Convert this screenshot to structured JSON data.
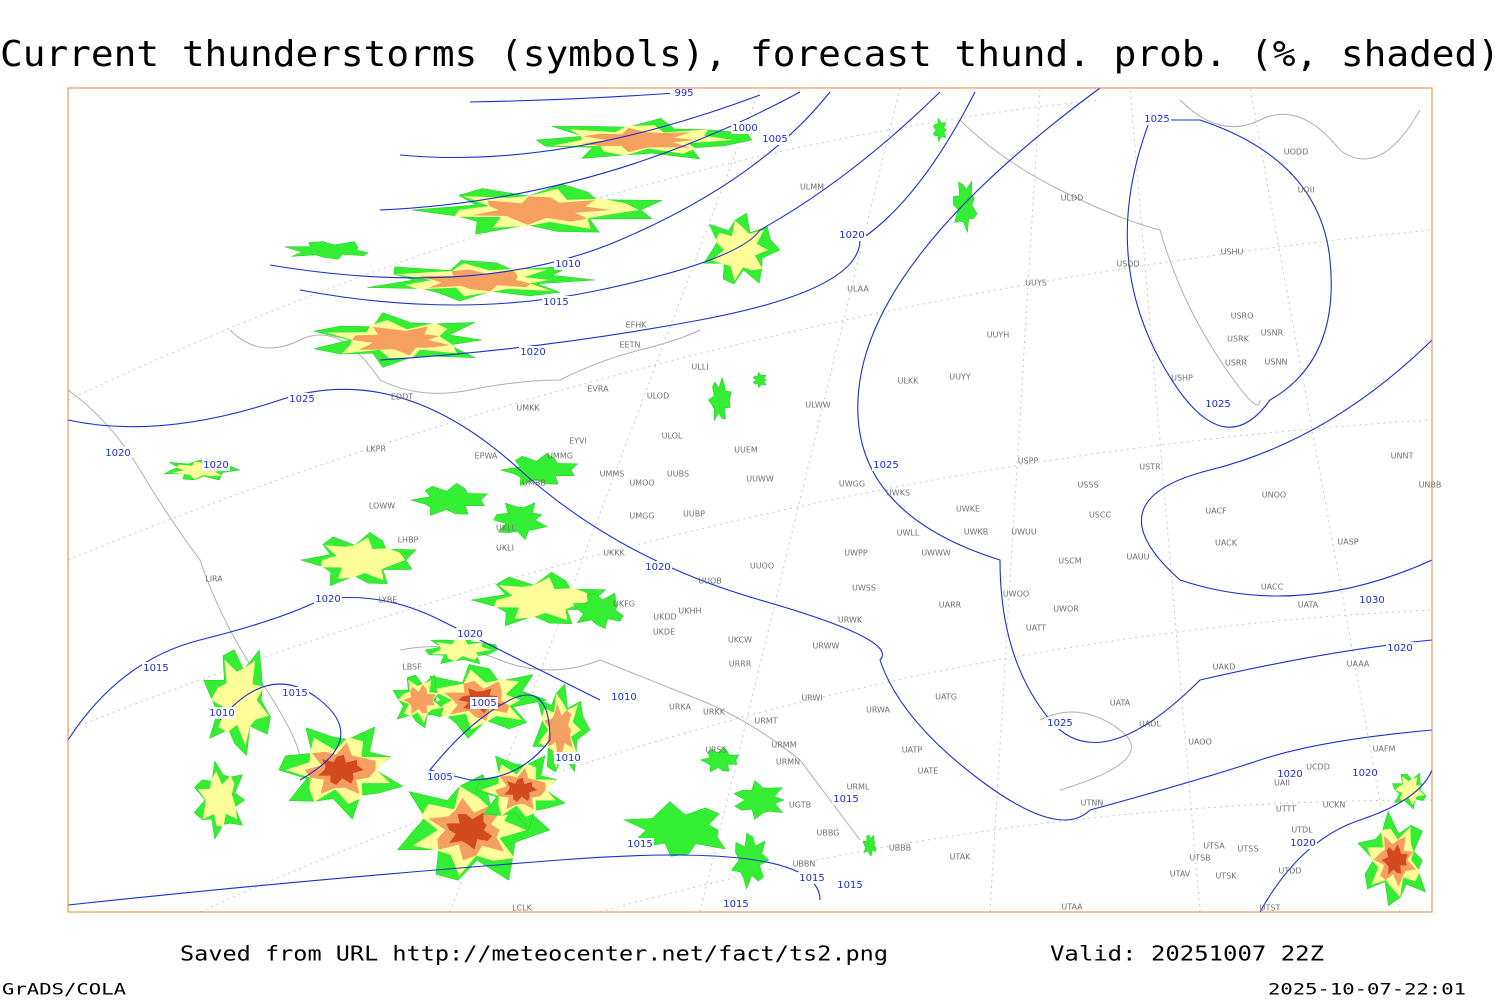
{
  "header": {
    "title": "Current thunderstorms (symbols), forecast thund. prob. (%, shaded)"
  },
  "footer": {
    "source": "Saved from URL http://meteocenter.net/fact/ts2.png",
    "valid": "Valid: 20251007 22Z",
    "software": "GrADS/COLA",
    "timestamp": "2025-10-07-22:01"
  },
  "isobar_labels": [
    995,
    1000,
    1005,
    1010,
    1015,
    1020,
    1020,
    1025,
    1025,
    1025,
    1025,
    1020,
    1020,
    1020,
    1020,
    1020,
    1015,
    1010,
    1015,
    1005,
    1005,
    1010,
    1010,
    1015,
    1015,
    1015,
    1015,
    1030,
    1025,
    1020,
    1020,
    1020,
    1020,
    1015
  ],
  "stations": [
    "ULMM",
    "ULDD",
    "UUYS",
    "USDD",
    "USHU",
    "UODD",
    "UOII",
    "USRO",
    "USRK",
    "USNR",
    "USRR",
    "USNN",
    "USHP",
    "ULAA",
    "UUYH",
    "ULKK",
    "UUYY",
    "ULWW",
    "EFHK",
    "EETN",
    "ULLI",
    "EVRA",
    "ULOD",
    "UMKK",
    "EDDT",
    "ULOL",
    "UUEM",
    "EYVI",
    "LKPR",
    "EPWA",
    "UMMG",
    "UMMS",
    "UMOO",
    "UUBS",
    "UMBB",
    "UUWW",
    "UWGG",
    "UWKS",
    "USPP",
    "USSS",
    "USTR",
    "UNNT",
    "UNBB",
    "LOWW",
    "UWKE",
    "UWKB",
    "UWUU",
    "USCC",
    "UNOO",
    "UACF",
    "UKLL",
    "UMGG",
    "UUBP",
    "UWLL",
    "UWWW",
    "LHBP",
    "UKLI",
    "UKKK",
    "UUOO",
    "UWPP",
    "USCM",
    "UAUU",
    "UACK",
    "UASP",
    "LIRA",
    "UUOB",
    "UWSS",
    "UACC",
    "UATA",
    "LYBE",
    "UKHH",
    "UKDD",
    "UWOO",
    "UWOR",
    "UARR",
    "UKFG",
    "UKDE",
    "UKCW",
    "URWK",
    "UATT",
    "URWW",
    "URRR",
    "UAKD",
    "UAAA",
    "LBSF",
    "URWI",
    "UATG",
    "UATA",
    "UAOL",
    "URKA",
    "URKK",
    "URMT",
    "URWA",
    "URSS",
    "URMM",
    "URMN",
    "UATP",
    "UATE",
    "UAOO",
    "UAFM",
    "UAII",
    "UCDD",
    "URML",
    "UGTB",
    "UTNN",
    "UTTT",
    "UCKN",
    "UBBG",
    "UBBB",
    "UTAK",
    "UTSA",
    "UTSS",
    "UTSB",
    "UTDL",
    "UBBN",
    "UTAV",
    "UTSK",
    "UTDD",
    "LCLK",
    "UTAA",
    "UTST"
  ]
}
